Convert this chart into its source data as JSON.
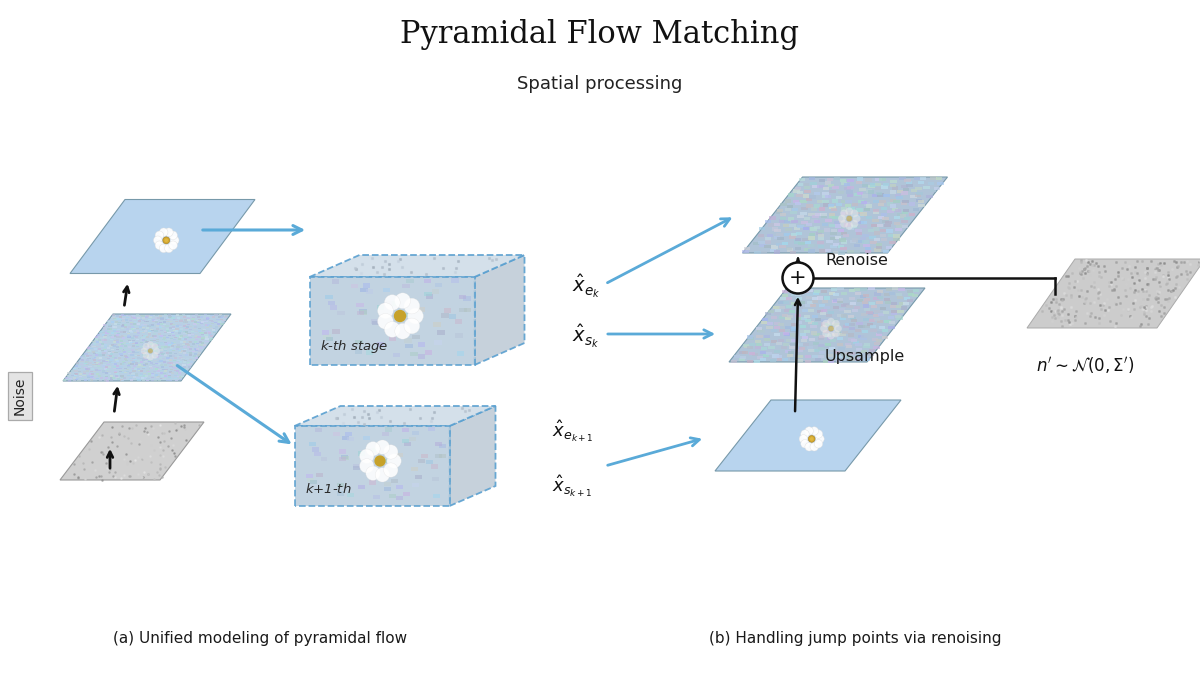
{
  "title": "Pyramidal Flow Matching",
  "subtitle": "Spatial processing",
  "caption_a": "(a) Unified modeling of pyramidal flow",
  "caption_b": "(b) Handling jump points via renoising",
  "label_ek": "$\\hat{x}_{e_k}$",
  "label_sk": "$\\hat{x}_{s_k}$",
  "label_ek1": "$\\hat{x}_{e_{k+1}}$",
  "label_sk1": "$\\hat{x}_{s_{k+1}}$",
  "label_kth": "$k$-th stage",
  "label_k1th": "$k$+1-th",
  "label_noise": "Noise",
  "label_renoise": "Renoise",
  "label_upsample": "Upsample",
  "label_n": "$n^{\\prime} \\sim \\mathcal{N}(0,\\Sigma^{\\prime})$",
  "bg_color": "#ffffff",
  "sky_blue": "#a8cce8",
  "sky_blue_noisy": "#b0c8dc",
  "arrow_blue": "#5aaad8",
  "arrow_black": "#1a1a1a",
  "box_dash_color": "#6ab4e8",
  "noise_gray": "#c8c8cc"
}
